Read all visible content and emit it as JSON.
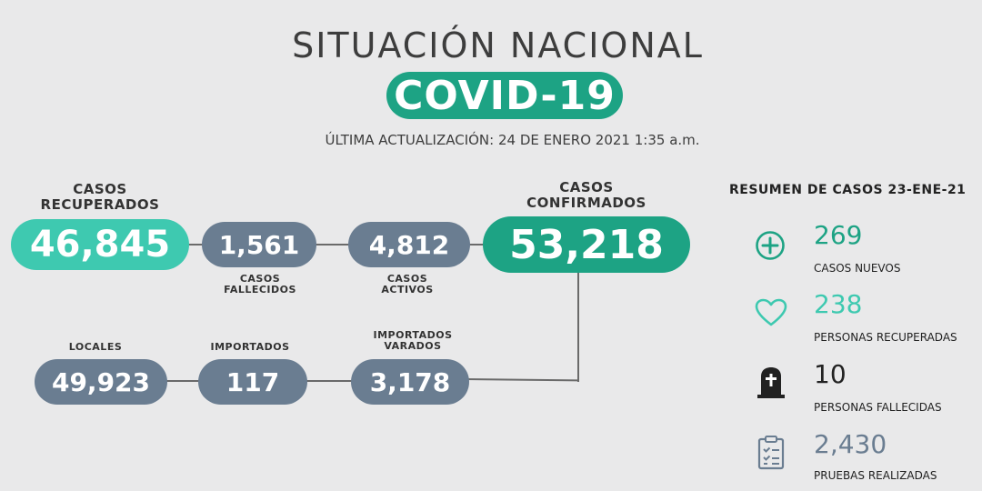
{
  "header": {
    "title": "SITUACIÓN NACIONAL",
    "badge": "COVID-19",
    "updated": "ÚLTIMA ACTUALIZACIÓN: 24 DE ENERO 2021 1:35 a.m."
  },
  "flow": {
    "recuperados": {
      "label_line1": "CASOS",
      "label_line2": "RECUPERADOS",
      "value": "46,845"
    },
    "fallecidos": {
      "label_line1": "CASOS",
      "label_line2": "FALLECIDOS",
      "value": "1,561"
    },
    "activos": {
      "label_line1": "CASOS",
      "label_line2": "ACTIVOS",
      "value": "4,812"
    },
    "confirmados": {
      "label_line1": "CASOS",
      "label_line2": "CONFIRMADOS",
      "value": "53,218"
    },
    "locales": {
      "label": "LOCALES",
      "value": "49,923"
    },
    "importados": {
      "label": "IMPORTADOS",
      "value": "117"
    },
    "varados": {
      "label_line1": "IMPORTADOS",
      "label_line2": "VARADOS",
      "value": "3,178"
    }
  },
  "resumen": {
    "title": "RESUMEN DE CASOS 23-ENE-21",
    "items": [
      {
        "icon": "plus-circle-icon",
        "value": "269",
        "label": "CASOS NUEVOS",
        "color": "#1da384"
      },
      {
        "icon": "heart-icon",
        "value": "238",
        "label": "PERSONAS RECUPERADAS",
        "color": "#3ec9b0"
      },
      {
        "icon": "tombstone-icon",
        "value": "10",
        "label": "PERSONAS FALLECIDAS",
        "color": "#222222"
      },
      {
        "icon": "clipboard-icon",
        "value": "2,430",
        "label": "PRUEBAS REALIZADAS",
        "color": "#6a7d91"
      }
    ]
  },
  "colors": {
    "background": "#e9e9ea",
    "green": "#1da384",
    "teal": "#3ec9b0",
    "slate": "#6a7d91"
  }
}
